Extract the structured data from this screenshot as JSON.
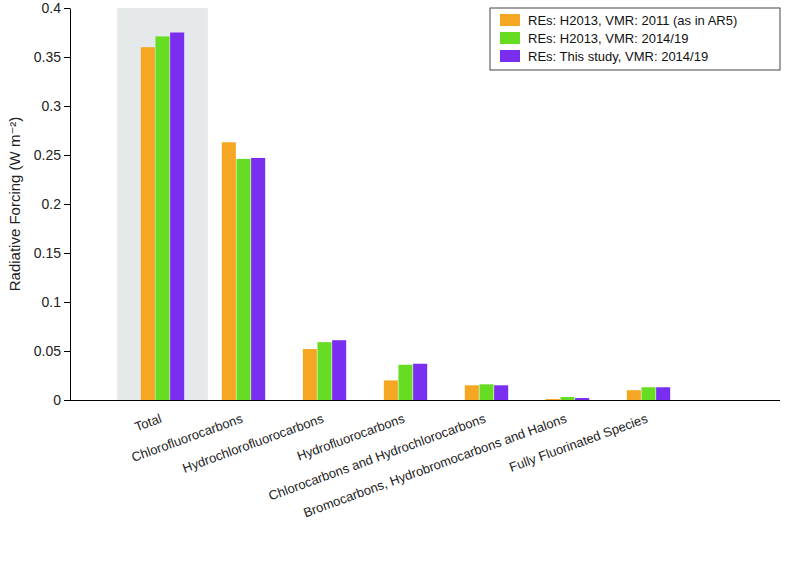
{
  "chart_data": {
    "type": "bar",
    "y_label": "Radiative Forcing (W m⁻²)",
    "categories": [
      "Total",
      "Chlorofluorocarbons",
      "Hydrochlorofluorocarbons",
      "Hydrofluorocarbons",
      "Chlorocarbons and Hydrochlorocarbons",
      "Bromocarbons, Hydrobromocarbons and Halons",
      "Fully Fluorinated Species"
    ],
    "series": [
      {
        "name": "REs: H2013, VMR: 2011 (as in AR5)",
        "color": "#f5a623",
        "values": [
          0.36,
          0.263,
          0.052,
          0.02,
          0.015,
          0.001,
          0.01
        ]
      },
      {
        "name": "REs: H2013, VMR: 2014/19",
        "color": "#66dd22",
        "values": [
          0.371,
          0.246,
          0.059,
          0.036,
          0.016,
          0.003,
          0.013
        ]
      },
      {
        "name": "REs: This study, VMR: 2014/19",
        "color": "#7a2ff0",
        "values": [
          0.375,
          0.247,
          0.061,
          0.037,
          0.015,
          0.002,
          0.013
        ]
      }
    ],
    "ylim": [
      0,
      0.4
    ],
    "yticks": [
      0,
      0.05,
      0.1,
      0.15,
      0.2,
      0.25,
      0.3,
      0.35,
      0.4
    ],
    "legend": "upper right",
    "grid": false
  }
}
